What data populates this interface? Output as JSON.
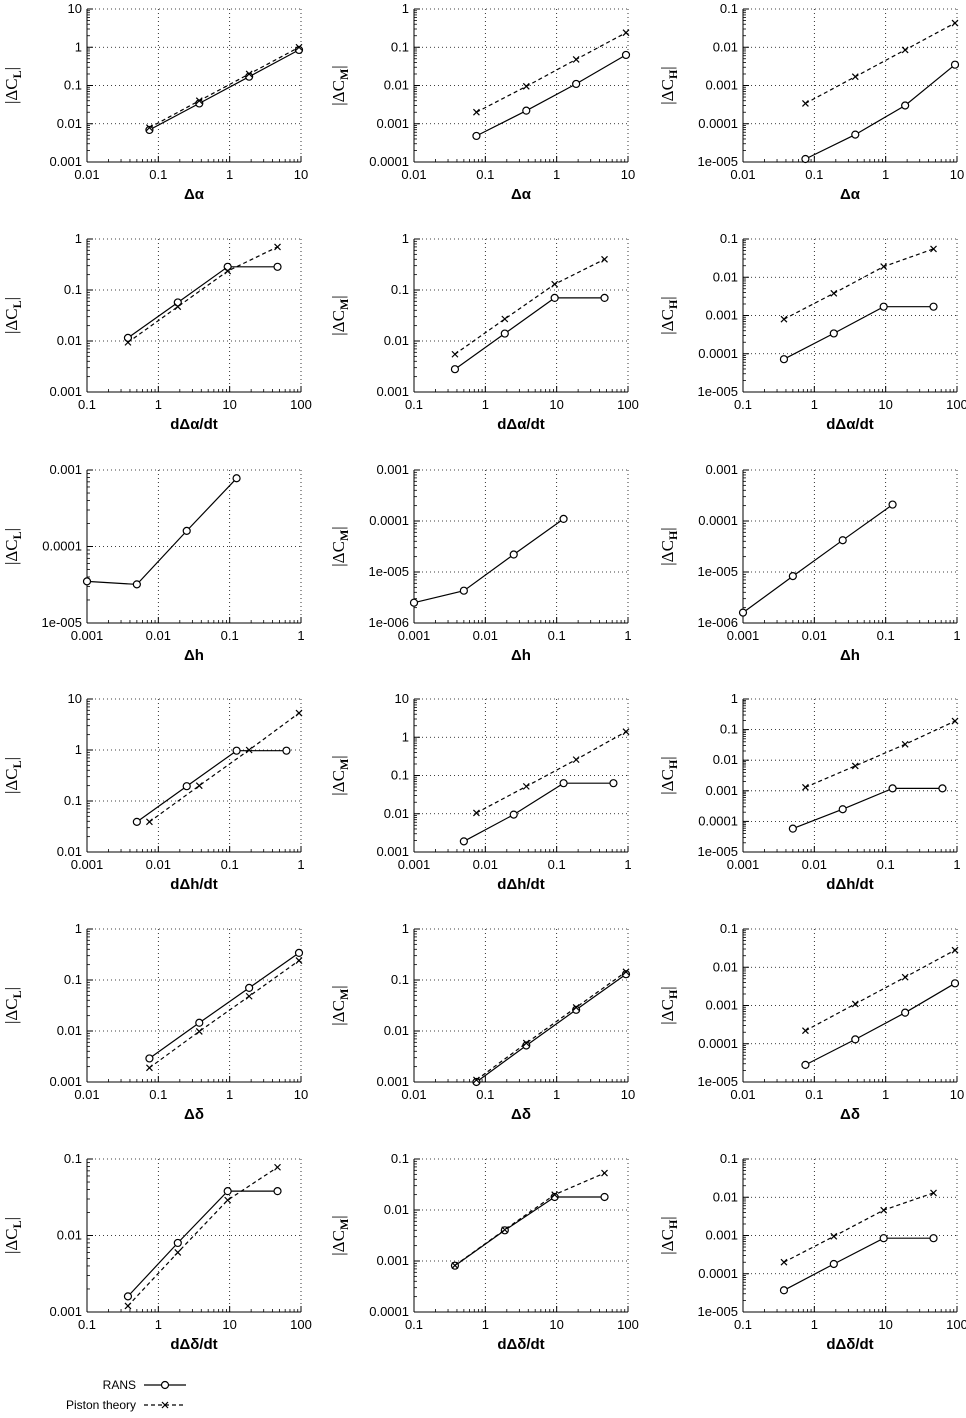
{
  "legend": {
    "rans_label": "RANS",
    "piston_label": "Piston theory"
  },
  "chart_data": [
    {
      "type": "line",
      "scale": "loglog",
      "xlabel": "Δα",
      "ylabel": "|ΔC_L|",
      "xlim": [
        0.01,
        10
      ],
      "ylim": [
        0.001,
        10
      ],
      "xticks": [
        "0.01",
        "0.1",
        "1",
        "10"
      ],
      "yticks": [
        "0.001",
        "0.01",
        "0.1",
        "1",
        "10"
      ],
      "x": [
        0.075,
        0.375,
        1.875,
        9.375
      ],
      "series": [
        {
          "name": "RANS",
          "values": [
            0.0069,
            0.034,
            0.17,
            0.85
          ]
        },
        {
          "name": "Piston theory",
          "values": [
            0.0079,
            0.04,
            0.2,
            1.0
          ]
        }
      ]
    },
    {
      "type": "line",
      "scale": "loglog",
      "xlabel": "Δα",
      "ylabel": "|ΔC_M|",
      "xlim": [
        0.01,
        10
      ],
      "ylim": [
        0.0001,
        1
      ],
      "xticks": [
        "0.01",
        "0.1",
        "1",
        "10"
      ],
      "yticks": [
        "0.0001",
        "0.001",
        "0.01",
        "0.1",
        "1"
      ],
      "x": [
        0.075,
        0.375,
        1.875,
        9.375
      ],
      "series": [
        {
          "name": "RANS",
          "values": [
            0.00048,
            0.0022,
            0.011,
            0.063
          ]
        },
        {
          "name": "Piston theory",
          "values": [
            0.002,
            0.0095,
            0.048,
            0.24
          ]
        }
      ]
    },
    {
      "type": "line",
      "scale": "loglog",
      "xlabel": "Δα",
      "ylabel": "|ΔC_H|",
      "xlim": [
        0.01,
        10
      ],
      "ylim": [
        1e-05,
        0.1
      ],
      "xticks": [
        "0.01",
        "0.1",
        "1",
        "10"
      ],
      "yticks": [
        "1e-005",
        "0.0001",
        "0.001",
        "0.01",
        "0.1"
      ],
      "x": [
        0.075,
        0.375,
        1.875,
        9.375
      ],
      "series": [
        {
          "name": "RANS",
          "values": [
            1.2e-05,
            5.2e-05,
            0.0003,
            0.0035
          ]
        },
        {
          "name": "Piston theory",
          "values": [
            0.00034,
            0.0017,
            0.0085,
            0.043
          ]
        }
      ]
    },
    {
      "type": "line",
      "scale": "loglog",
      "xlabel": "dΔα/dt",
      "ylabel": "|ΔC_L|",
      "xlim": [
        0.1,
        100
      ],
      "ylim": [
        0.001,
        1
      ],
      "xticks": [
        "0.1",
        "1",
        "10",
        "100"
      ],
      "yticks": [
        "0.001",
        "0.01",
        "0.1",
        "1"
      ],
      "x": [
        0.375,
        1.875,
        9.375,
        46.875
      ],
      "series": [
        {
          "name": "RANS",
          "values": [
            0.0115,
            0.057,
            0.285,
            0.285
          ]
        },
        {
          "name": "Piston theory",
          "values": [
            0.0094,
            0.047,
            0.235,
            0.7
          ]
        }
      ]
    },
    {
      "type": "line",
      "scale": "loglog",
      "xlabel": "dΔα/dt",
      "ylabel": "|ΔC_M|",
      "xlim": [
        0.1,
        100
      ],
      "ylim": [
        0.001,
        1
      ],
      "xticks": [
        "0.1",
        "1",
        "10",
        "100"
      ],
      "yticks": [
        "0.001",
        "0.01",
        "0.1",
        "1"
      ],
      "x": [
        0.375,
        1.875,
        9.375,
        46.875
      ],
      "series": [
        {
          "name": "RANS",
          "values": [
            0.0028,
            0.014,
            0.07,
            0.07
          ]
        },
        {
          "name": "Piston theory",
          "values": [
            0.0055,
            0.027,
            0.13,
            0.4
          ]
        }
      ]
    },
    {
      "type": "line",
      "scale": "loglog",
      "xlabel": "dΔα/dt",
      "ylabel": "|ΔC_H|",
      "xlim": [
        0.1,
        100
      ],
      "ylim": [
        1e-05,
        0.1
      ],
      "xticks": [
        "0.1",
        "1",
        "10",
        "100"
      ],
      "yticks": [
        "1e-005",
        "0.0001",
        "0.001",
        "0.01",
        "0.1"
      ],
      "x": [
        0.375,
        1.875,
        9.375,
        46.875
      ],
      "series": [
        {
          "name": "RANS",
          "values": [
            7.2e-05,
            0.00034,
            0.0017,
            0.0017
          ]
        },
        {
          "name": "Piston theory",
          "values": [
            0.0008,
            0.0038,
            0.019,
            0.055
          ]
        }
      ]
    },
    {
      "type": "line",
      "scale": "loglog",
      "xlabel": "Δh",
      "ylabel": "|ΔC_L|",
      "xlim": [
        0.001,
        1
      ],
      "ylim": [
        1e-05,
        0.001
      ],
      "xticks": [
        "0.001",
        "0.01",
        "0.1",
        "1"
      ],
      "yticks": [
        "1e-005",
        "0.0001",
        "0.001"
      ],
      "x": [
        0.001,
        0.005,
        0.025,
        0.125
      ],
      "series": [
        {
          "name": "RANS",
          "values": [
            3.5e-05,
            3.2e-05,
            0.00016,
            0.00078
          ]
        }
      ]
    },
    {
      "type": "line",
      "scale": "loglog",
      "xlabel": "Δh",
      "ylabel": "|ΔC_M|",
      "xlim": [
        0.001,
        1
      ],
      "ylim": [
        1e-06,
        0.001
      ],
      "xticks": [
        "0.001",
        "0.01",
        "0.1",
        "1"
      ],
      "yticks": [
        "1e-006",
        "1e-005",
        "0.0001",
        "0.001"
      ],
      "x": [
        0.001,
        0.005,
        0.025,
        0.125
      ],
      "series": [
        {
          "name": "RANS",
          "values": [
            2.5e-06,
            4.3e-06,
            2.2e-05,
            0.00011
          ]
        }
      ]
    },
    {
      "type": "line",
      "scale": "loglog",
      "xlabel": "Δh",
      "ylabel": "|ΔC_H|",
      "xlim": [
        0.001,
        1
      ],
      "ylim": [
        1e-06,
        0.001
      ],
      "xticks": [
        "0.001",
        "0.01",
        "0.1",
        "1"
      ],
      "yticks": [
        "1e-006",
        "1e-005",
        "0.0001",
        "0.001"
      ],
      "x": [
        0.001,
        0.005,
        0.025,
        0.125
      ],
      "series": [
        {
          "name": "RANS",
          "values": [
            1.6e-06,
            8.3e-06,
            4.2e-05,
            0.00021
          ]
        }
      ]
    },
    {
      "type": "line",
      "scale": "loglog",
      "xlabel": "dΔh/dt",
      "ylabel": "|ΔC_L|",
      "xlim": [
        0.001,
        1
      ],
      "ylim": [
        0.01,
        10
      ],
      "xticks": [
        "0.001",
        "0.01",
        "0.1",
        "1"
      ],
      "yticks": [
        "0.01",
        "0.1",
        "1",
        "10"
      ],
      "series": [
        {
          "name": "RANS",
          "x": [
            0.005,
            0.025,
            0.125,
            0.625
          ],
          "values": [
            0.039,
            0.195,
            0.97,
            0.97
          ]
        },
        {
          "name": "Piston theory",
          "x": [
            0.0075,
            0.0375,
            0.1875,
            0.9375
          ],
          "values": [
            0.039,
            0.2,
            1.0,
            5.3
          ]
        }
      ]
    },
    {
      "type": "line",
      "scale": "loglog",
      "xlabel": "dΔh/dt",
      "ylabel": "|ΔC_M|",
      "xlim": [
        0.001,
        1
      ],
      "ylim": [
        0.001,
        10
      ],
      "xticks": [
        "0.001",
        "0.01",
        "0.1",
        "1"
      ],
      "yticks": [
        "0.001",
        "0.01",
        "0.1",
        "1",
        "10"
      ],
      "series": [
        {
          "name": "RANS",
          "x": [
            0.005,
            0.025,
            0.125,
            0.625
          ],
          "values": [
            0.0019,
            0.0095,
            0.063,
            0.063
          ]
        },
        {
          "name": "Piston theory",
          "x": [
            0.0075,
            0.0375,
            0.1875,
            0.9375
          ],
          "values": [
            0.0105,
            0.052,
            0.26,
            1.4
          ]
        }
      ]
    },
    {
      "type": "line",
      "scale": "loglog",
      "xlabel": "dΔh/dt",
      "ylabel": "|ΔC_H|",
      "xlim": [
        0.001,
        1
      ],
      "ylim": [
        1e-05,
        1
      ],
      "xticks": [
        "0.001",
        "0.01",
        "0.1",
        "1"
      ],
      "yticks": [
        "1e-005",
        "0.0001",
        "0.001",
        "0.01",
        "0.1",
        "1"
      ],
      "series": [
        {
          "name": "RANS",
          "x": [
            0.005,
            0.025,
            0.125,
            0.625
          ],
          "values": [
            5.8e-05,
            0.00025,
            0.0012,
            0.0012
          ]
        },
        {
          "name": "Piston theory",
          "x": [
            0.0075,
            0.0375,
            0.1875,
            0.9375
          ],
          "values": [
            0.0013,
            0.0065,
            0.033,
            0.19
          ]
        }
      ]
    },
    {
      "type": "line",
      "scale": "loglog",
      "xlabel": "Δδ",
      "ylabel": "|ΔC_L|",
      "xlim": [
        0.01,
        10
      ],
      "ylim": [
        0.001,
        1
      ],
      "xticks": [
        "0.01",
        "0.1",
        "1",
        "10"
      ],
      "yticks": [
        "0.001",
        "0.01",
        "0.1",
        "1"
      ],
      "x": [
        0.075,
        0.375,
        1.875,
        9.375
      ],
      "series": [
        {
          "name": "RANS",
          "values": [
            0.0029,
            0.0145,
            0.07,
            0.34
          ]
        },
        {
          "name": "Piston theory",
          "values": [
            0.0019,
            0.0098,
            0.048,
            0.24
          ]
        }
      ]
    },
    {
      "type": "line",
      "scale": "loglog",
      "xlabel": "Δδ",
      "ylabel": "|ΔC_M|",
      "xlim": [
        0.01,
        10
      ],
      "ylim": [
        0.001,
        1
      ],
      "xticks": [
        "0.01",
        "0.1",
        "1",
        "10"
      ],
      "yticks": [
        "0.001",
        "0.01",
        "0.1",
        "1"
      ],
      "x": [
        0.075,
        0.375,
        1.875,
        9.375
      ],
      "series": [
        {
          "name": "RANS",
          "values": [
            0.001,
            0.0052,
            0.026,
            0.13
          ]
        },
        {
          "name": "Piston theory",
          "values": [
            0.0011,
            0.0058,
            0.029,
            0.145
          ]
        }
      ]
    },
    {
      "type": "line",
      "scale": "loglog",
      "xlabel": "Δδ",
      "ylabel": "|ΔC_H|",
      "xlim": [
        0.01,
        10
      ],
      "ylim": [
        1e-05,
        0.1
      ],
      "xticks": [
        "0.01",
        "0.1",
        "1",
        "10"
      ],
      "yticks": [
        "1e-005",
        "0.0001",
        "0.001",
        "0.01",
        "0.1"
      ],
      "x": [
        0.075,
        0.375,
        1.875,
        9.375
      ],
      "series": [
        {
          "name": "RANS",
          "values": [
            2.8e-05,
            0.00013,
            0.00065,
            0.0038
          ]
        },
        {
          "name": "Piston theory",
          "values": [
            0.00022,
            0.0011,
            0.0055,
            0.028
          ]
        }
      ]
    },
    {
      "type": "line",
      "scale": "loglog",
      "xlabel": "dΔδ/dt",
      "ylabel": "|ΔC_L|",
      "xlim": [
        0.1,
        100
      ],
      "ylim": [
        0.001,
        0.1
      ],
      "xticks": [
        "0.1",
        "1",
        "10",
        "100"
      ],
      "yticks": [
        "0.001",
        "0.01",
        "0.1"
      ],
      "x": [
        0.375,
        1.875,
        9.375,
        46.875
      ],
      "series": [
        {
          "name": "RANS",
          "values": [
            0.0016,
            0.008,
            0.038,
            0.038
          ]
        },
        {
          "name": "Piston theory",
          "values": [
            0.0012,
            0.006,
            0.029,
            0.078
          ]
        }
      ]
    },
    {
      "type": "line",
      "scale": "loglog",
      "xlabel": "dΔδ/dt",
      "ylabel": "|ΔC_M|",
      "xlim": [
        0.1,
        100
      ],
      "ylim": [
        0.0001,
        0.1
      ],
      "xticks": [
        "0.1",
        "1",
        "10",
        "100"
      ],
      "yticks": [
        "0.0001",
        "0.001",
        "0.01",
        "0.1"
      ],
      "x": [
        0.375,
        1.875,
        9.375,
        46.875
      ],
      "series": [
        {
          "name": "RANS",
          "values": [
            0.00081,
            0.004,
            0.018,
            0.018
          ]
        },
        {
          "name": "Piston theory",
          "values": [
            0.00082,
            0.0041,
            0.02,
            0.053
          ]
        }
      ]
    },
    {
      "type": "line",
      "scale": "loglog",
      "xlabel": "dΔδ/dt",
      "ylabel": "|ΔC_H|",
      "xlim": [
        0.1,
        100
      ],
      "ylim": [
        1e-05,
        0.1
      ],
      "xticks": [
        "0.1",
        "1",
        "10",
        "100"
      ],
      "yticks": [
        "1e-005",
        "0.0001",
        "0.001",
        "0.01",
        "0.1"
      ],
      "x": [
        0.375,
        1.875,
        9.375,
        46.875
      ],
      "series": [
        {
          "name": "RANS",
          "values": [
            3.7e-05,
            0.00018,
            0.00085,
            0.00085
          ]
        },
        {
          "name": "Piston theory",
          "values": [
            0.0002,
            0.00095,
            0.0046,
            0.013
          ]
        }
      ]
    }
  ]
}
